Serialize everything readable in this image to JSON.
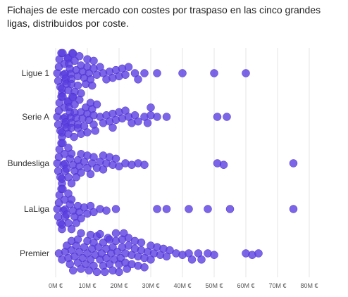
{
  "title": "Fichajes de este mercado con costes por traspaso en las cinco grandes ligas, distribuidos por coste.",
  "chart_data": {
    "type": "scatter",
    "subtype": "beeswarm",
    "title": "Fichajes de este mercado con costes por traspaso en las cinco grandes ligas, distribuidos por coste.",
    "xlabel": "",
    "ylabel": "",
    "xlim": [
      0,
      80
    ],
    "x_ticks": [
      0,
      10,
      20,
      30,
      40,
      50,
      60,
      70,
      80
    ],
    "x_tick_labels": [
      "0M €",
      "10M €",
      "20M €",
      "30M €",
      "40M €",
      "50M €",
      "60M €",
      "70M €",
      "80M €"
    ],
    "grid": "vertical",
    "marker_color": "#5b3fe0",
    "categories": [
      "Ligue 1",
      "Serie A",
      "Bundesliga",
      "LaLiga",
      "Premier"
    ],
    "series": [
      {
        "category": "Ligue 1",
        "x": [
          0.5,
          0.8,
          1,
          1.2,
          1.5,
          1.8,
          2,
          2,
          2.2,
          2.5,
          2.8,
          3,
          3,
          3.2,
          3.5,
          3.8,
          4,
          4,
          4.2,
          4.5,
          4.8,
          5,
          5,
          5.3,
          5.5,
          6,
          6,
          6.5,
          7,
          7,
          7.5,
          8,
          8,
          8.5,
          9,
          9.5,
          10,
          10,
          10.5,
          11,
          11.5,
          12,
          12,
          13,
          14,
          15,
          16,
          17,
          18,
          19,
          20,
          21,
          22,
          23,
          25,
          26,
          28,
          32,
          40,
          50,
          60
        ]
      },
      {
        "category": "Serie A",
        "x": [
          0.5,
          0.8,
          1,
          1.2,
          1.5,
          1.8,
          2,
          2,
          2.2,
          2.5,
          2.8,
          3,
          3,
          3.2,
          3.5,
          3.8,
          4,
          4,
          4.2,
          4.5,
          4.8,
          5,
          5,
          5.3,
          5.5,
          5.8,
          6,
          6,
          6.5,
          7,
          7,
          7.5,
          8,
          8,
          8.5,
          9,
          9.5,
          10,
          10,
          10.5,
          11,
          11.5,
          12,
          12,
          12.5,
          13,
          14,
          15,
          16,
          17,
          18,
          18,
          19,
          20,
          21,
          22,
          23,
          24,
          25,
          26,
          28,
          29,
          30,
          30,
          32,
          35,
          51,
          54
        ]
      },
      {
        "category": "Bundesliga",
        "x": [
          0.5,
          0.8,
          1,
          1.2,
          1.5,
          1.8,
          2,
          2,
          2.2,
          2.5,
          2.8,
          3,
          3,
          3.5,
          4,
          4,
          4.5,
          5,
          5,
          5.5,
          6,
          6.5,
          7,
          7.5,
          8,
          8,
          9,
          10,
          10,
          11,
          11.5,
          12,
          13,
          14,
          15,
          15,
          16,
          17,
          18,
          19,
          20,
          22,
          24,
          26,
          28,
          51,
          53,
          75
        ]
      },
      {
        "category": "LaLiga",
        "x": [
          0.5,
          0.8,
          1,
          1.2,
          1.5,
          1.8,
          2,
          2,
          2.2,
          2.5,
          2.8,
          3,
          3,
          3.5,
          4,
          4,
          4.5,
          5,
          5,
          5.5,
          6,
          6.5,
          7,
          7.5,
          8,
          9,
          10,
          11,
          12,
          14,
          16,
          19,
          32,
          35,
          42,
          48,
          55,
          75
        ]
      },
      {
        "category": "Premier",
        "x": [
          1,
          2,
          3,
          3.5,
          4,
          4.5,
          5,
          5,
          5.5,
          6,
          6.5,
          7,
          7,
          7.5,
          8,
          8,
          8.5,
          9,
          9.5,
          10,
          10,
          10.5,
          11,
          11,
          11.5,
          12,
          12,
          12.5,
          13,
          13,
          13.5,
          14,
          14,
          14.5,
          15,
          15,
          15.5,
          16,
          16,
          16.5,
          17,
          17,
          17.5,
          18,
          18,
          18.5,
          19,
          19,
          19.5,
          20,
          20,
          20.5,
          21,
          21,
          21.5,
          22,
          22,
          22.5,
          23,
          23,
          24,
          24,
          25,
          25,
          26,
          26,
          27,
          27,
          28,
          28,
          29,
          30,
          30,
          31,
          32,
          33,
          34,
          35,
          36,
          38,
          40,
          42,
          43,
          45,
          46,
          48,
          50,
          60,
          62,
          64
        ]
      }
    ]
  }
}
